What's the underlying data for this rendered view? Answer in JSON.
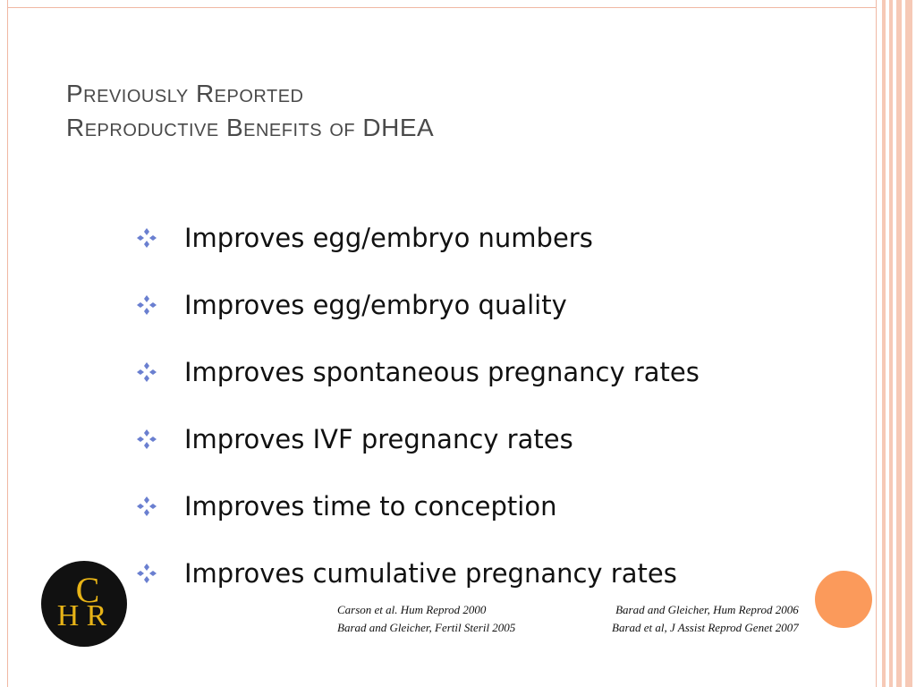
{
  "title": {
    "line1": "Previously Reported",
    "line2": "Reproductive Benefits of DHEA"
  },
  "bullets": [
    "Improves egg/embryo numbers",
    "Improves egg/embryo quality",
    "Improves spontaneous pregnancy rates",
    "Improves IVF pregnancy rates",
    "Improves time to conception",
    "Improves cumulative pregnancy rates"
  ],
  "bullet_icon": "four-diamond-bullet-icon",
  "references": {
    "left": [
      "Carson et al. Hum Reprod 2000",
      "Barad and Gleicher, Fertil Steril 2005"
    ],
    "right": [
      "Barad and Gleicher, Hum Reprod 2006",
      "Barad et al, J Assist Reprod Genet 2007"
    ]
  },
  "logo": {
    "text": "CHR",
    "name": "chr-logo"
  },
  "colors": {
    "title": "#4a4a4a",
    "bullet": "#6a7fd0",
    "border": "#f0b8a4",
    "stripe": "#f6c9b6",
    "accent_orange": "#fb9a5b",
    "logo_bg": "#111111",
    "logo_gold": "#e8b417"
  }
}
